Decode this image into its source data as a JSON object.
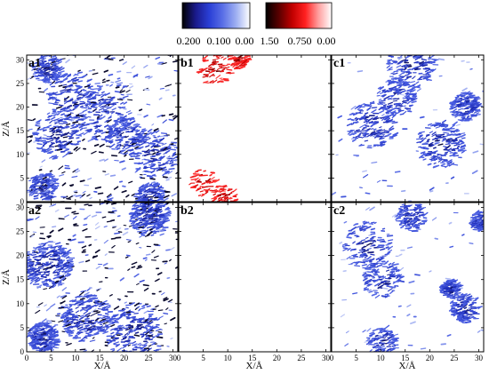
{
  "colorbars": [
    {
      "name": "blue",
      "colors": [
        "#000000",
        "#1a1a8c",
        "#2a3fd6",
        "#5a6fe6",
        "#9fb0f2",
        "#ffffff"
      ],
      "ticks": [
        "0.200",
        "0.100",
        "0.00"
      ]
    },
    {
      "name": "red",
      "colors": [
        "#000000",
        "#5a0000",
        "#c00000",
        "#ff2020",
        "#ff9f9f",
        "#ffffff"
      ],
      "ticks": [
        "1.50",
        "0.750",
        "0.00"
      ]
    }
  ],
  "chart_data": {
    "type": "heatmap",
    "xlabel": "X/Å",
    "ylabel": "Z/Å",
    "xlim": [
      0,
      31
    ],
    "ylim": [
      0,
      31
    ],
    "xticks": [
      "0",
      "5",
      "10",
      "15",
      "20",
      "25",
      "30"
    ],
    "yticks": [
      "0",
      "5",
      "10",
      "15",
      "20",
      "25",
      "30"
    ],
    "panels": [
      {
        "label": "a1",
        "colormap": "blue",
        "density": "high",
        "seed": 11,
        "regions": [
          {
            "x": 9,
            "z": 22,
            "r": 5
          },
          {
            "x": 15,
            "z": 19,
            "r": 6
          },
          {
            "x": 6,
            "z": 14,
            "r": 5
          },
          {
            "x": 26,
            "z": 10,
            "r": 5
          },
          {
            "x": 20,
            "z": 14,
            "r": 4
          },
          {
            "x": 3,
            "z": 3,
            "r": 3
          },
          {
            "x": 25,
            "z": 1,
            "r": 3
          },
          {
            "x": 4,
            "z": 28,
            "r": 3
          }
        ]
      },
      {
        "label": "b1",
        "colormap": "red",
        "density": "low",
        "seed": 23,
        "regions": [
          {
            "x": 7,
            "z": 28,
            "r": 3.5
          },
          {
            "x": 5,
            "z": 4,
            "r": 3
          },
          {
            "x": 9,
            "z": 1,
            "r": 2.5
          },
          {
            "x": 12,
            "z": 30,
            "r": 2
          }
        ]
      },
      {
        "label": "c1",
        "colormap": "blue",
        "density": "medium",
        "seed": 37,
        "regions": [
          {
            "x": 16,
            "z": 29,
            "r": 5
          },
          {
            "x": 13,
            "z": 22,
            "r": 4
          },
          {
            "x": 8,
            "z": 16,
            "r": 5
          },
          {
            "x": 22,
            "z": 12,
            "r": 5
          },
          {
            "x": 27,
            "z": 20,
            "r": 3
          }
        ]
      },
      {
        "label": "a2",
        "colormap": "blue",
        "density": "high",
        "seed": 41,
        "regions": [
          {
            "x": 25,
            "z": 28,
            "r": 4
          },
          {
            "x": 4,
            "z": 18,
            "r": 5
          },
          {
            "x": 12,
            "z": 7,
            "r": 5
          },
          {
            "x": 22,
            "z": 4,
            "r": 6
          },
          {
            "x": 3,
            "z": 3,
            "r": 3
          }
        ]
      },
      {
        "label": "b2",
        "colormap": "red",
        "density": "none",
        "seed": 53,
        "regions": []
      },
      {
        "label": "c2",
        "colormap": "blue",
        "density": "medium",
        "seed": 67,
        "regions": [
          {
            "x": 7,
            "z": 22,
            "r": 5
          },
          {
            "x": 10,
            "z": 15,
            "r": 4
          },
          {
            "x": 16,
            "z": 28,
            "r": 3
          },
          {
            "x": 27,
            "z": 9,
            "r": 3
          },
          {
            "x": 30,
            "z": 27,
            "r": 2
          },
          {
            "x": 10,
            "z": 2,
            "r": 3
          },
          {
            "x": 24,
            "z": 13,
            "r": 2
          }
        ]
      }
    ]
  }
}
